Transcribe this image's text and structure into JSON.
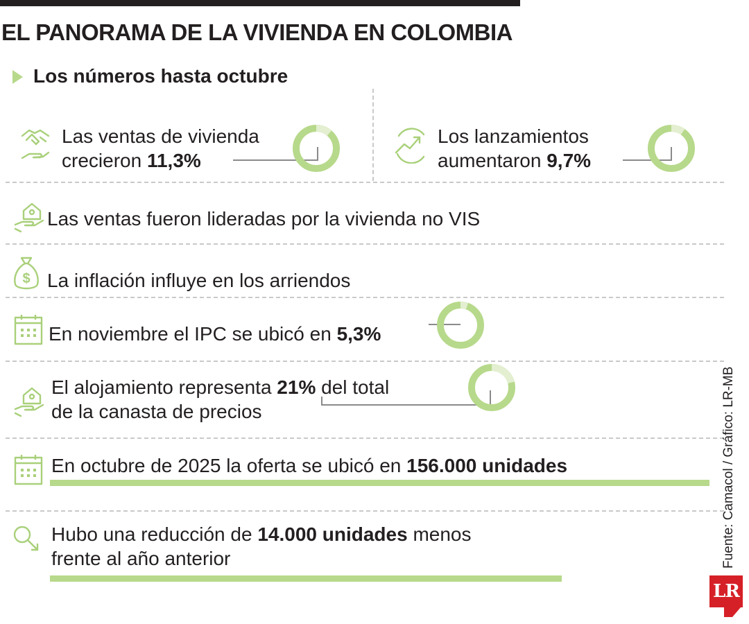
{
  "header": {
    "title": "EL PANORAMA DE LA VIVIENDA EN COLOMBIA",
    "subtitle": "Los números hasta octubre"
  },
  "items": {
    "ventas": {
      "pre": "Las ventas de vivienda",
      "line2": "crecieron ",
      "value": "11,3%",
      "icon": "handshake-icon"
    },
    "lanzamientos": {
      "pre": "Los lanzamientos",
      "line2": "aumentaron ",
      "value": "9,7%",
      "icon": "growth-chart-icon"
    },
    "lideradas": {
      "text": "Las ventas fueron lideradas por la vivienda no VIS",
      "icon": "house-hand-icon"
    },
    "inflacion": {
      "text": "La inflación influye en los arriendos",
      "icon": "money-bag-icon"
    },
    "ipc": {
      "pre": "En noviembre el IPC se ubicó en ",
      "value": "5,3%",
      "icon": "calendar-icon"
    },
    "alojamiento": {
      "pre": "El alojamiento representa ",
      "value": "21%",
      "post": " del total",
      "line2": "de la canasta de precios",
      "icon": "house-hand-icon"
    },
    "oferta": {
      "pre": "En octubre de 2025 la oferta se ubicó en ",
      "value": "156.000 unidades",
      "icon": "calendar-icon"
    },
    "reduccion": {
      "pre": "Hubo una reducción de ",
      "value": "14.000 unidades",
      "post": " menos",
      "line2": "frente al año anterior",
      "icon": "magnifier-down-icon"
    }
  },
  "footer": {
    "source": "Fuente: Camacol / Gráfico: LR-MB",
    "logo": "LR"
  },
  "colors": {
    "accent": "#b7d98b",
    "accent_light": "#e3efd0",
    "text": "#231f20",
    "rule": "#c9c9c9"
  },
  "chart_data": {
    "type": "pie",
    "title": "EL PANORAMA DE LA VIVIENDA EN COLOMBIA",
    "series": [
      {
        "name": "Las ventas de vivienda crecieron",
        "value": 11.3,
        "unit": "%"
      },
      {
        "name": "Los lanzamientos aumentaron",
        "value": 9.7,
        "unit": "%"
      },
      {
        "name": "En noviembre el IPC se ubicó en",
        "value": 5.3,
        "unit": "%"
      },
      {
        "name": "El alojamiento representa del total de la canasta de precios",
        "value": 21,
        "unit": "%"
      }
    ],
    "bars": [
      {
        "name": "oferta",
        "value": 156000,
        "unit": "unidades"
      },
      {
        "name": "reducción",
        "value": 14000,
        "unit": "unidades"
      }
    ]
  }
}
